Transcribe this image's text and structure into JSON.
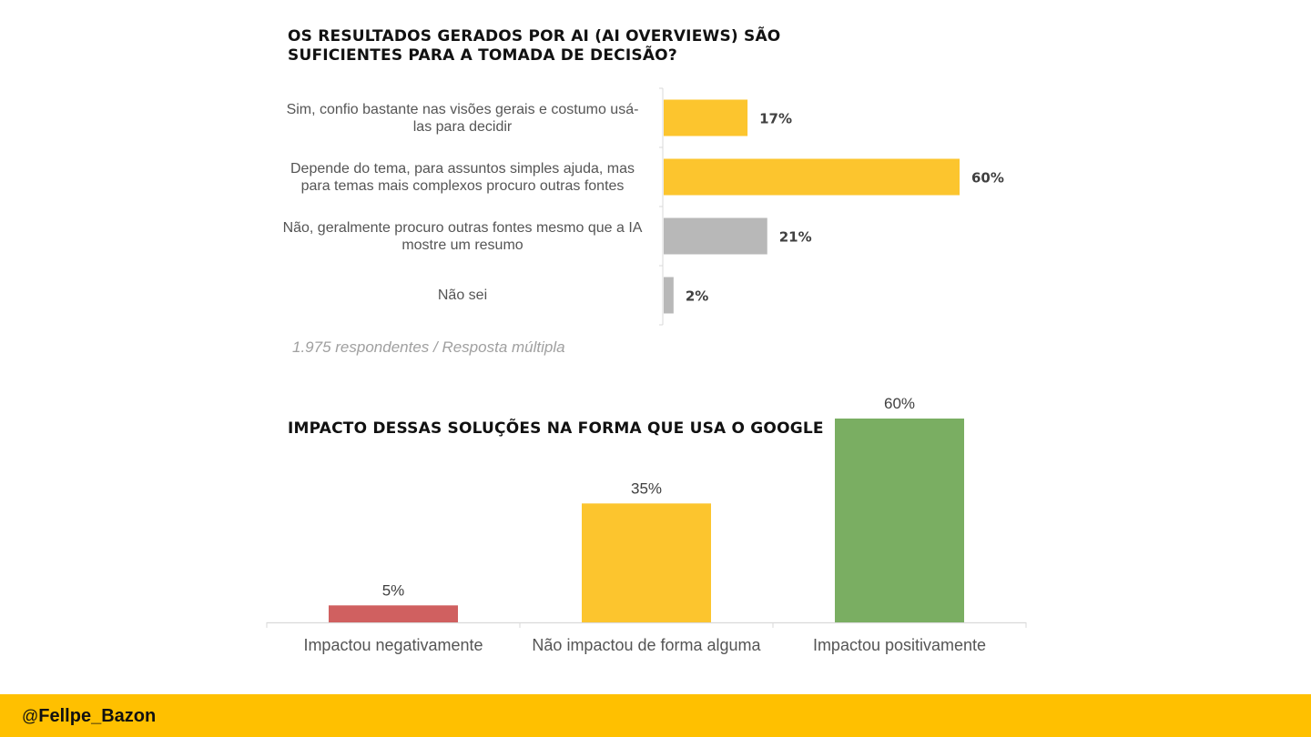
{
  "chart_data": [
    {
      "type": "bar",
      "orientation": "horizontal",
      "title": "OS RESULTADOS GERADOS POR AI (AI OVERVIEWS) SÃO SUFICIENTES PARA A TOMADA DE DECISÃO?",
      "categories": [
        "Sim, confio bastante nas visões gerais e costumo usá-las para decidir",
        "Depende do tema, para assuntos simples ajuda, mas para temas mais complexos procuro outras fontes",
        "Não, geralmente procuro outras fontes mesmo que a IA mostre um resumo",
        "Não sei"
      ],
      "category_lines": [
        [
          "Sim, confio bastante nas visões gerais e costumo usá-",
          "las para decidir"
        ],
        [
          "Depende do tema, para assuntos simples ajuda, mas",
          "para temas mais complexos procuro outras fontes"
        ],
        [
          "Não, geralmente procuro outras fontes mesmo que a IA",
          "mostre um resumo"
        ],
        [
          "Não sei"
        ]
      ],
      "values": [
        17,
        60,
        21,
        2
      ],
      "data_labels": [
        "17%",
        "60%",
        "21%",
        "2%"
      ],
      "colors": [
        "#fcc52e",
        "#fcc52e",
        "#b8b8b8",
        "#b8b8b8"
      ],
      "xlim": [
        0,
        60
      ],
      "unit": "%",
      "note": "1.975 respondentes / Resposta múltipla"
    },
    {
      "type": "bar",
      "orientation": "vertical",
      "title": "IMPACTO DESSAS SOLUÇÕES NA FORMA QUE USA O GOOGLE",
      "categories": [
        "Impactou negativamente",
        "Não impactou de forma alguma",
        "Impactou positivamente"
      ],
      "values": [
        5,
        35,
        60
      ],
      "data_labels": [
        "5%",
        "35%",
        "60%"
      ],
      "colors": [
        "#d06060",
        "#fcc52e",
        "#7aae62"
      ],
      "ylim": [
        0,
        60
      ],
      "unit": "%"
    }
  ],
  "footer": {
    "at": "@",
    "handle": "Fellpe_Bazon",
    "color": "#ffc000"
  }
}
